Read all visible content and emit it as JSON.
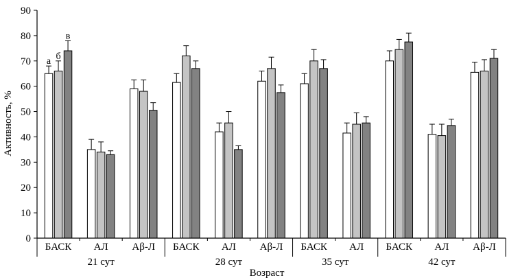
{
  "chart_data": {
    "type": "bar",
    "title": "",
    "xlabel": "Возраст",
    "ylabel": "Активность, %",
    "ylim": [
      0,
      90
    ],
    "yticks": [
      0,
      10,
      20,
      30,
      40,
      50,
      60,
      70,
      80,
      90
    ],
    "grid": false,
    "series": [
      {
        "name": "а",
        "color": "#ffffff"
      },
      {
        "name": "б",
        "color": "#c4c4c4"
      },
      {
        "name": "в",
        "color": "#828282"
      }
    ],
    "series_labels": [
      "а",
      "б",
      "в"
    ],
    "groups": [
      {
        "age": "21 сут",
        "categories": [
          {
            "label": "БАСК",
            "values": [
              65,
              66,
              74
            ],
            "errors": [
              3,
              4,
              4
            ]
          },
          {
            "label": "АЛ",
            "values": [
              35,
              34,
              33
            ],
            "errors": [
              4,
              4,
              1.5
            ]
          },
          {
            "label": "Аβ-Л",
            "values": [
              59,
              58,
              50.5
            ],
            "errors": [
              3.5,
              4.5,
              3
            ]
          }
        ]
      },
      {
        "age": "28 сут",
        "categories": [
          {
            "label": "БАСК",
            "values": [
              61.5,
              72,
              67
            ],
            "errors": [
              3.5,
              4,
              3
            ]
          },
          {
            "label": "АЛ",
            "values": [
              42,
              45.5,
              35
            ],
            "errors": [
              3.5,
              4.5,
              1.5
            ]
          },
          {
            "label": "Аβ-Л",
            "values": [
              62,
              67,
              57.5
            ],
            "errors": [
              4,
              4.5,
              3
            ]
          }
        ]
      },
      {
        "age": "35 сут",
        "categories": [
          {
            "label": "БАСК",
            "values": [
              61,
              70,
              67
            ],
            "errors": [
              4,
              4.5,
              3.5
            ]
          },
          {
            "label": "АЛ",
            "values": [
              41.5,
              45,
              45.5
            ],
            "errors": [
              4,
              4.5,
              2.5
            ]
          }
        ]
      },
      {
        "age": "42 сут",
        "categories": [
          {
            "label": "БАСК",
            "values": [
              70,
              74.5,
              77.5
            ],
            "errors": [
              4,
              4,
              3.5
            ]
          },
          {
            "label": "АЛ",
            "values": [
              41,
              40.5,
              44.5
            ],
            "errors": [
              4,
              4.5,
              2.5
            ]
          },
          {
            "label": "Аβ-Л",
            "values": [
              65.5,
              66,
              71
            ],
            "errors": [
              4,
              4.5,
              3.5
            ]
          }
        ]
      }
    ]
  }
}
